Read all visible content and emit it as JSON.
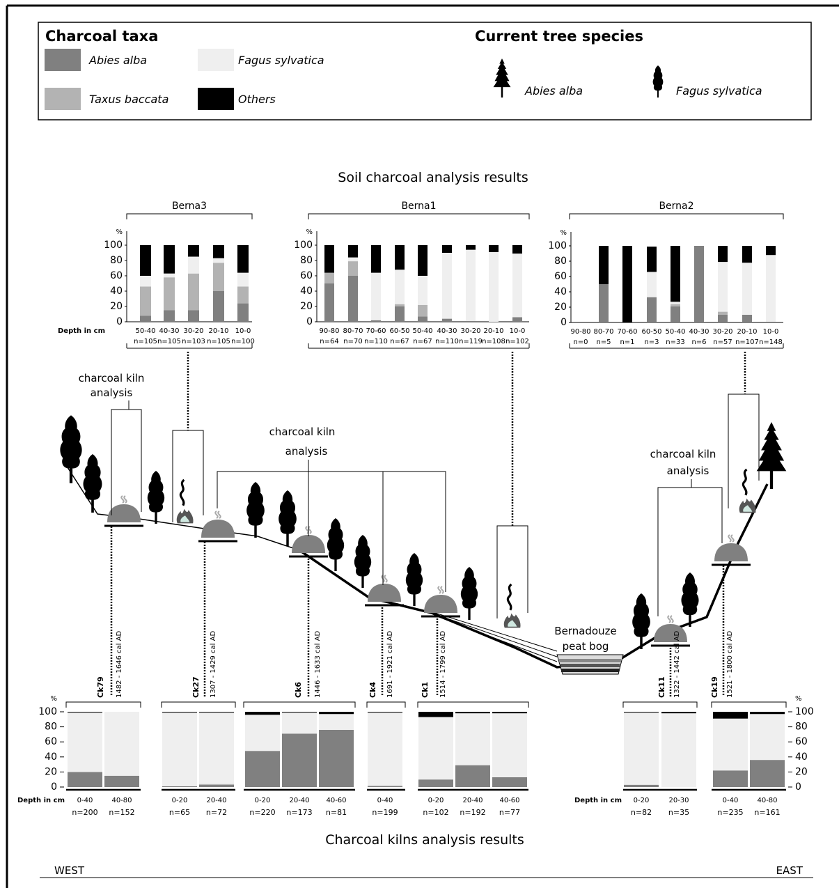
{
  "legend": {
    "title": "Charcoal taxa",
    "items": [
      {
        "name": "Abies alba",
        "color": "#808080"
      },
      {
        "name": "Taxus baccata",
        "color": "#b3b3b3"
      },
      {
        "name": "Fagus sylvatica",
        "color": "#efefef"
      },
      {
        "name": "Others",
        "color": "#000000"
      }
    ]
  },
  "tree_legend": {
    "title": "Current tree species",
    "items": [
      "Abies alba",
      "Fagus sylvatica"
    ]
  },
  "soil_title": "Soil charcoal analysis results",
  "kiln_title": "Charcoal kilns analysis results",
  "annotations": {
    "kiln_analysis": [
      [
        "charcoal kiln",
        "analysis"
      ],
      [
        "charcoal kiln",
        "analysis"
      ],
      [
        "charcoal kiln",
        "analysis"
      ]
    ],
    "peat_bog": [
      "Bernadouze",
      "peat bog"
    ],
    "west": "WEST",
    "east": "EAST"
  },
  "chart_data": [
    {
      "type": "bar",
      "stacked": true,
      "title": "Berna3",
      "x_label": "Depth in cm",
      "y_label": "%",
      "ylim": [
        0,
        100
      ],
      "yticks": [
        0,
        20,
        40,
        60,
        80,
        100
      ],
      "categories": [
        "50-40",
        "40-30",
        "30-20",
        "20-10",
        "10-0"
      ],
      "n_labels": [
        "n=105",
        "n=105",
        "n=103",
        "n=105",
        "n=100"
      ],
      "series": [
        {
          "values": [
            8,
            15,
            15,
            40,
            24
          ]
        },
        {
          "values": [
            38,
            43,
            48,
            37,
            22
          ]
        },
        {
          "values": [
            14,
            5,
            22,
            6,
            18
          ]
        },
        {
          "values": [
            40,
            37,
            15,
            17,
            36
          ]
        }
      ]
    },
    {
      "type": "bar",
      "stacked": true,
      "title": "Berna1",
      "y_label": "%",
      "ylim": [
        0,
        100
      ],
      "yticks": [
        0,
        20,
        40,
        60,
        80,
        100
      ],
      "categories": [
        "90-80",
        "80-70",
        "70-60",
        "60-50",
        "50-40",
        "40-30",
        "30-20",
        "20-10",
        "10-0"
      ],
      "n_labels": [
        "n=64",
        "n=70",
        "n=110",
        "n=67",
        "n=67",
        "n=110",
        "n=119",
        "n=108",
        "n=102"
      ],
      "series": [
        {
          "values": [
            50,
            60,
            2,
            20,
            7,
            4,
            1,
            0,
            6
          ]
        },
        {
          "values": [
            14,
            19,
            0,
            3,
            15,
            0,
            0,
            0,
            0
          ]
        },
        {
          "values": [
            0,
            5,
            62,
            45,
            38,
            86,
            93,
            91,
            83
          ]
        },
        {
          "values": [
            36,
            16,
            36,
            32,
            40,
            10,
            6,
            9,
            11
          ]
        }
      ]
    },
    {
      "type": "bar",
      "stacked": true,
      "title": "Berna2",
      "y_label": "%",
      "ylim": [
        0,
        100
      ],
      "yticks": [
        0,
        20,
        40,
        60,
        80,
        100
      ],
      "categories": [
        "90-80",
        "80-70",
        "70-60",
        "60-50",
        "50-40",
        "40-30",
        "30-20",
        "20-10",
        "10-0"
      ],
      "n_labels": [
        "n=0",
        "n=5",
        "n=1",
        "n=3",
        "n=33",
        "n=6",
        "n=57",
        "n=107",
        "n=148"
      ],
      "series": [
        {
          "values": [
            0,
            50,
            0,
            33,
            21,
            100,
            10,
            10,
            1
          ]
        },
        {
          "values": [
            0,
            0,
            0,
            0,
            3,
            0,
            4,
            0,
            0
          ]
        },
        {
          "values": [
            0,
            0,
            0,
            33,
            3,
            0,
            65,
            68,
            87
          ]
        },
        {
          "values": [
            0,
            50,
            100,
            33,
            73,
            0,
            21,
            22,
            12
          ]
        }
      ]
    },
    {
      "type": "bar",
      "stacked": true,
      "title": "Ck79",
      "date": "1482 - 1646 cal AD",
      "x_label": "Depth in cm",
      "y_label": "%",
      "y_axis": "left",
      "ylim": [
        0,
        100
      ],
      "yticks": [
        0,
        20,
        40,
        60,
        80,
        100
      ],
      "categories": [
        "0-40",
        "40-80"
      ],
      "n_labels": [
        "n=200",
        "n=152"
      ],
      "series": [
        {
          "values": [
            20,
            15
          ]
        },
        {
          "values": [
            0,
            0
          ]
        },
        {
          "values": [
            79,
            85
          ]
        },
        {
          "values": [
            1,
            0
          ]
        }
      ]
    },
    {
      "type": "bar",
      "stacked": true,
      "title": "Ck27",
      "date": "1307 - 1429 cal AD",
      "ylim": [
        0,
        100
      ],
      "categories": [
        "0-20",
        "20-40"
      ],
      "n_labels": [
        "n=65",
        "n=72"
      ],
      "series": [
        {
          "values": [
            1,
            3
          ]
        },
        {
          "values": [
            0,
            1
          ]
        },
        {
          "values": [
            98,
            95
          ]
        },
        {
          "values": [
            1,
            1
          ]
        }
      ]
    },
    {
      "type": "bar",
      "stacked": true,
      "title": "Ck6",
      "date": "1446 - 1633 cal AD",
      "ylim": [
        0,
        100
      ],
      "categories": [
        "0-20",
        "20-40",
        "40-60"
      ],
      "n_labels": [
        "n=220",
        "n=173",
        "n=81"
      ],
      "series": [
        {
          "values": [
            48,
            71,
            76
          ]
        },
        {
          "values": [
            0,
            0,
            0
          ]
        },
        {
          "values": [
            48,
            28,
            21
          ]
        },
        {
          "values": [
            4,
            1,
            3
          ]
        }
      ]
    },
    {
      "type": "bar",
      "stacked": true,
      "title": "Ck4",
      "date": "1691 - 1921 cal AD",
      "ylim": [
        0,
        100
      ],
      "categories": [
        "0-40"
      ],
      "n_labels": [
        "n=199"
      ],
      "series": [
        {
          "values": [
            1
          ]
        },
        {
          "values": [
            1
          ]
        },
        {
          "values": [
            97
          ]
        },
        {
          "values": [
            1
          ]
        }
      ]
    },
    {
      "type": "bar",
      "stacked": true,
      "title": "Ck1",
      "date": "1514 - 1799 cal AD",
      "ylim": [
        0,
        100
      ],
      "categories": [
        "0-20",
        "20-40",
        "40-60"
      ],
      "n_labels": [
        "n=102",
        "n=192",
        "n=77"
      ],
      "series": [
        {
          "values": [
            10,
            29,
            13
          ]
        },
        {
          "values": [
            0,
            0,
            0
          ]
        },
        {
          "values": [
            83,
            69,
            85
          ]
        },
        {
          "values": [
            7,
            2,
            2
          ]
        }
      ]
    },
    {
      "type": "bar",
      "stacked": true,
      "title": "Ck11",
      "date": "1322 - 1442 cal AD",
      "x_label": "Depth in cm",
      "ylim": [
        0,
        100
      ],
      "categories": [
        "0-20",
        "20-30"
      ],
      "n_labels": [
        "n=82",
        "n=35"
      ],
      "series": [
        {
          "values": [
            3,
            0
          ]
        },
        {
          "values": [
            0,
            0
          ]
        },
        {
          "values": [
            96,
            98
          ]
        },
        {
          "values": [
            1,
            2
          ]
        }
      ]
    },
    {
      "type": "bar",
      "stacked": true,
      "title": "Ck19",
      "date": "1521 - 1800 cal AD",
      "y_label": "%",
      "y_axis": "right",
      "ylim": [
        0,
        100
      ],
      "yticks": [
        0,
        20,
        40,
        60,
        80,
        100
      ],
      "categories": [
        "0-40",
        "40-80"
      ],
      "n_labels": [
        "n=235",
        "n=161"
      ],
      "series": [
        {
          "values": [
            22,
            36
          ]
        },
        {
          "values": [
            0,
            0
          ]
        },
        {
          "values": [
            69,
            61
          ]
        },
        {
          "values": [
            9,
            3
          ]
        }
      ]
    }
  ]
}
